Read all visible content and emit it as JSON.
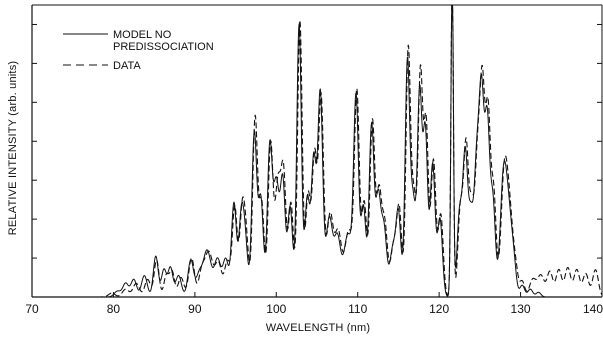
{
  "chart_data": {
    "type": "line",
    "xlabel": "WAVELENGTH (nm)",
    "ylabel": "RELATIVE INTENSITY (arb. units)",
    "xlim": [
      70,
      140
    ],
    "ylim": [
      0,
      7.5
    ],
    "x_ticks": [
      "70",
      "80",
      "90",
      "100",
      "110",
      "120",
      "130",
      "140"
    ],
    "y_ticks_labeled": false,
    "grid": false,
    "legend_position": "top-left",
    "legend": {
      "model_label_line1": "MODEL NO",
      "model_label_line2": "PREDISSOCIATION",
      "data_label": "DATA"
    },
    "series": [
      {
        "name": "MODEL NO PREDISSOCIATION",
        "style": "solid",
        "peaks": [
          [
            80.5,
            0.15,
            0.4
          ],
          [
            81.5,
            0.35,
            0.35
          ],
          [
            82.5,
            0.45,
            0.35
          ],
          [
            83.8,
            0.55,
            0.35
          ],
          [
            85.2,
            1.05,
            0.3
          ],
          [
            86.2,
            0.7,
            0.3
          ],
          [
            87.0,
            0.75,
            0.3
          ],
          [
            88.0,
            0.55,
            0.35
          ],
          [
            89.5,
            0.95,
            0.35
          ],
          [
            90.5,
            0.5,
            0.35
          ],
          [
            91.5,
            1.2,
            0.5
          ],
          [
            92.8,
            0.95,
            0.4
          ],
          [
            93.8,
            0.95,
            0.35
          ],
          [
            94.8,
            2.4,
            0.3
          ],
          [
            95.7,
            2.0,
            0.3
          ],
          [
            96.2,
            1.3,
            0.3
          ],
          [
            97.3,
            4.2,
            0.3
          ],
          [
            98.1,
            2.5,
            0.3
          ],
          [
            99.2,
            3.8,
            0.3
          ],
          [
            100.0,
            2.9,
            0.35
          ],
          [
            100.8,
            2.9,
            0.3
          ],
          [
            101.7,
            2.3,
            0.3
          ],
          [
            102.8,
            7.0,
            0.28
          ],
          [
            103.8,
            2.5,
            0.3
          ],
          [
            104.6,
            3.5,
            0.3
          ],
          [
            105.4,
            5.2,
            0.3
          ],
          [
            106.5,
            2.0,
            0.4
          ],
          [
            107.5,
            1.5,
            0.4
          ],
          [
            108.8,
            1.6,
            0.5
          ],
          [
            109.8,
            5.0,
            0.3
          ],
          [
            110.7,
            2.3,
            0.3
          ],
          [
            111.7,
            4.4,
            0.3
          ],
          [
            112.5,
            2.4,
            0.3
          ],
          [
            113.2,
            1.8,
            0.35
          ],
          [
            114.3,
            1.2,
            0.35
          ],
          [
            115.0,
            2.1,
            0.3
          ],
          [
            116.1,
            6.0,
            0.28
          ],
          [
            116.8,
            2.4,
            0.3
          ],
          [
            117.6,
            5.2,
            0.28
          ],
          [
            118.3,
            4.2,
            0.28
          ],
          [
            119.2,
            3.4,
            0.3
          ],
          [
            120.1,
            2.0,
            0.3
          ],
          [
            121.6,
            8.3,
            0.15
          ],
          [
            122.5,
            2.1,
            0.3
          ],
          [
            123.2,
            3.6,
            0.3
          ],
          [
            123.9,
            2.0,
            0.3
          ],
          [
            124.6,
            3.2,
            0.3
          ],
          [
            125.2,
            5.0,
            0.3
          ],
          [
            125.9,
            4.4,
            0.3
          ],
          [
            126.6,
            2.4,
            0.3
          ],
          [
            127.9,
            3.0,
            0.4
          ],
          [
            128.6,
            1.8,
            0.4
          ],
          [
            129.2,
            0.6,
            0.3
          ],
          [
            130.2,
            0.3,
            0.3
          ],
          [
            131.2,
            0.2,
            0.3
          ],
          [
            132.2,
            0.12,
            0.3
          ]
        ]
      },
      {
        "name": "DATA",
        "style": "dashed",
        "peaks": [
          [
            79.8,
            0.1,
            0.4
          ],
          [
            81.5,
            0.2,
            0.4
          ],
          [
            82.8,
            0.35,
            0.4
          ],
          [
            84.2,
            0.45,
            0.35
          ],
          [
            85.3,
            0.95,
            0.3
          ],
          [
            86.5,
            0.55,
            0.3
          ],
          [
            87.2,
            0.65,
            0.3
          ],
          [
            88.3,
            0.5,
            0.35
          ],
          [
            89.6,
            1.0,
            0.35
          ],
          [
            90.8,
            0.55,
            0.35
          ],
          [
            91.7,
            1.15,
            0.5
          ],
          [
            92.9,
            0.85,
            0.4
          ],
          [
            94.0,
            0.9,
            0.35
          ],
          [
            94.9,
            2.3,
            0.3
          ],
          [
            95.8,
            2.1,
            0.3
          ],
          [
            96.3,
            1.4,
            0.3
          ],
          [
            97.4,
            4.6,
            0.3
          ],
          [
            98.2,
            2.4,
            0.3
          ],
          [
            99.3,
            3.9,
            0.3
          ],
          [
            100.2,
            2.9,
            0.35
          ],
          [
            100.9,
            3.0,
            0.3
          ],
          [
            101.8,
            2.4,
            0.3
          ],
          [
            102.9,
            7.1,
            0.28
          ],
          [
            103.9,
            2.6,
            0.3
          ],
          [
            104.7,
            3.6,
            0.3
          ],
          [
            105.5,
            5.1,
            0.3
          ],
          [
            106.6,
            2.1,
            0.4
          ],
          [
            107.6,
            1.6,
            0.4
          ],
          [
            108.9,
            1.7,
            0.5
          ],
          [
            109.9,
            5.1,
            0.3
          ],
          [
            110.8,
            2.4,
            0.3
          ],
          [
            111.8,
            4.5,
            0.3
          ],
          [
            112.6,
            2.5,
            0.3
          ],
          [
            113.3,
            1.9,
            0.35
          ],
          [
            114.4,
            1.3,
            0.35
          ],
          [
            115.1,
            2.2,
            0.3
          ],
          [
            116.2,
            6.3,
            0.28
          ],
          [
            116.9,
            2.5,
            0.3
          ],
          [
            117.7,
            5.7,
            0.28
          ],
          [
            118.4,
            4.4,
            0.28
          ],
          [
            119.3,
            3.5,
            0.3
          ],
          [
            120.2,
            2.1,
            0.3
          ],
          [
            121.6,
            8.3,
            0.15
          ],
          [
            122.6,
            2.2,
            0.3
          ],
          [
            123.3,
            3.8,
            0.3
          ],
          [
            124.0,
            2.2,
            0.3
          ],
          [
            124.7,
            3.3,
            0.3
          ],
          [
            125.3,
            5.2,
            0.3
          ],
          [
            126.0,
            4.6,
            0.3
          ],
          [
            126.7,
            2.6,
            0.3
          ],
          [
            128.0,
            3.1,
            0.4
          ],
          [
            128.7,
            1.9,
            0.4
          ],
          [
            129.4,
            0.6,
            0.3
          ],
          [
            130.2,
            0.4,
            0.3
          ],
          [
            131.5,
            0.45,
            0.4
          ],
          [
            132.5,
            0.55,
            0.4
          ],
          [
            133.6,
            0.65,
            0.35
          ],
          [
            134.7,
            0.7,
            0.35
          ],
          [
            135.8,
            0.75,
            0.35
          ],
          [
            136.9,
            0.7,
            0.35
          ],
          [
            138.0,
            0.6,
            0.35
          ],
          [
            139.2,
            0.7,
            0.35
          ]
        ]
      }
    ]
  }
}
